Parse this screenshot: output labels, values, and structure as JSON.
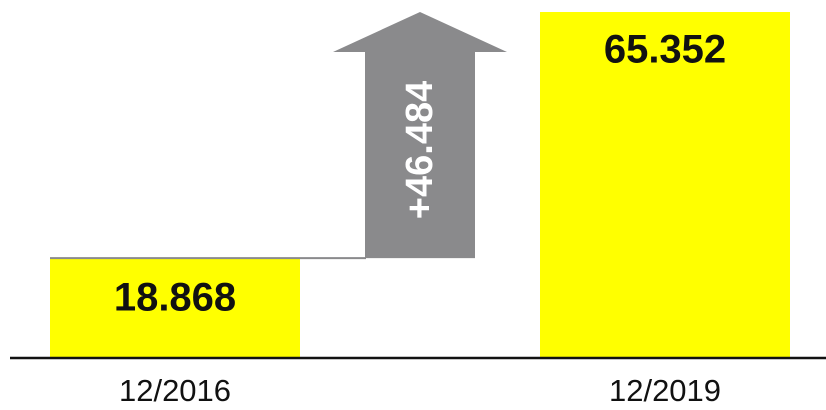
{
  "chart_data": {
    "type": "bar",
    "categories": [
      "12/2016",
      "12/2019"
    ],
    "values": [
      18868,
      65352
    ],
    "value_labels": [
      "18.868",
      "65.352"
    ],
    "color": "#ffff00",
    "annotation": "+46.484",
    "annotation_color": "#8a8a8c"
  }
}
